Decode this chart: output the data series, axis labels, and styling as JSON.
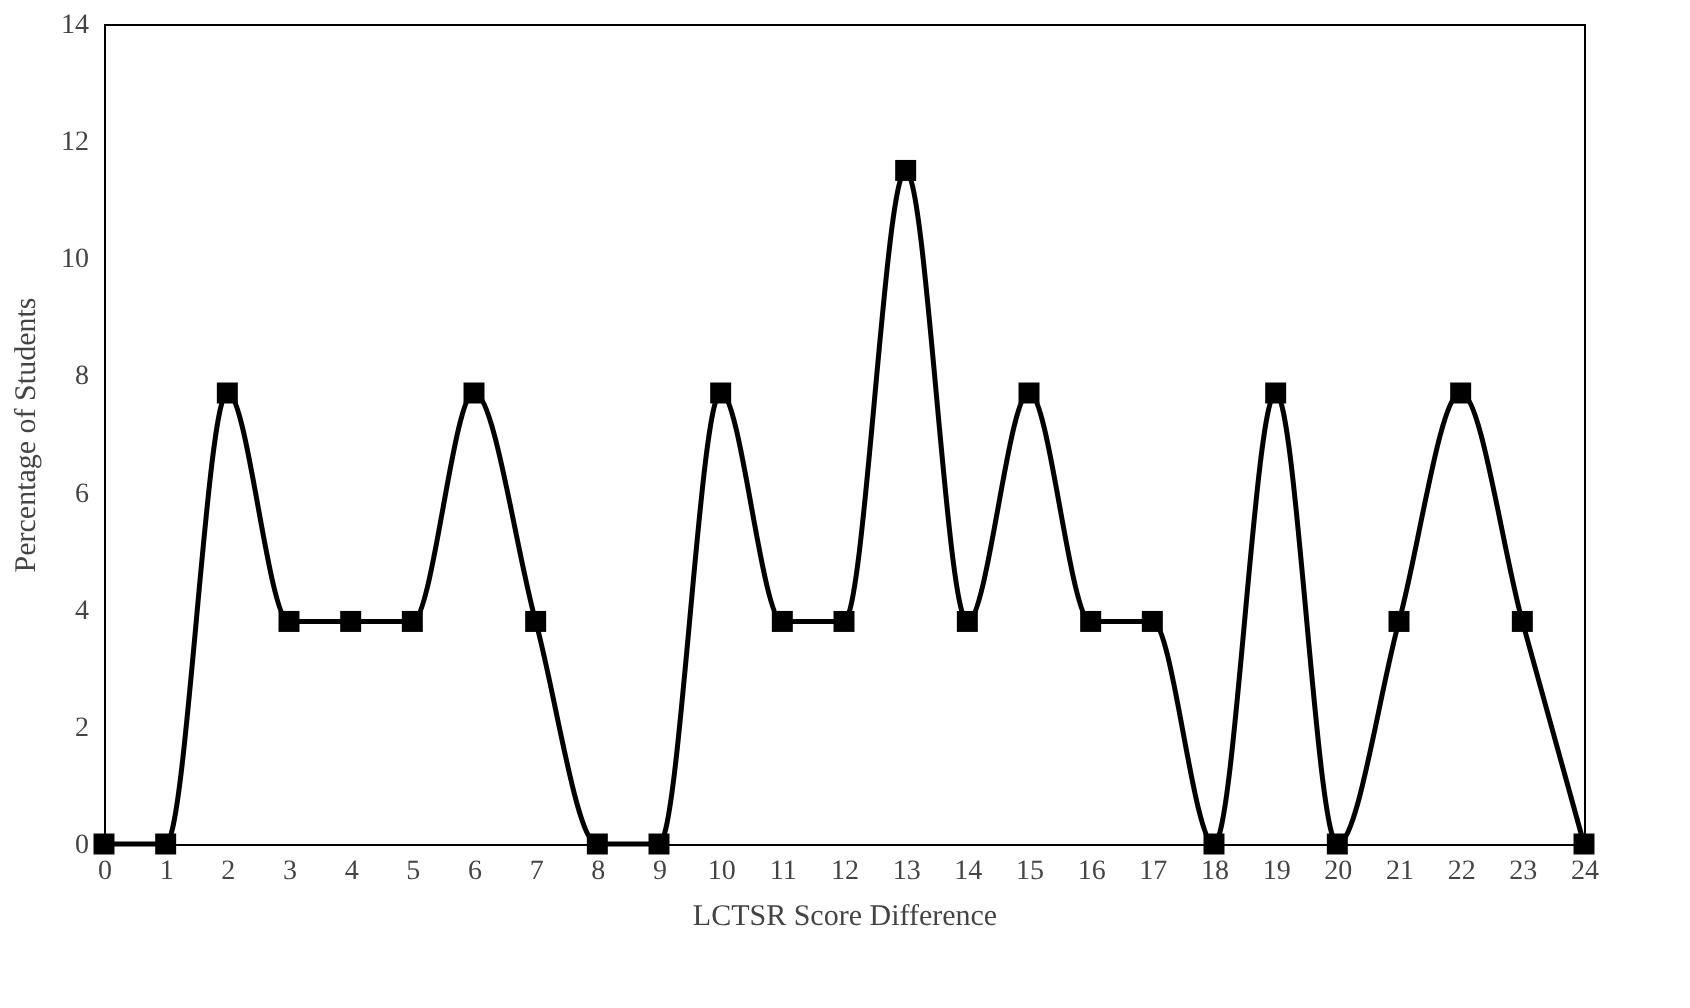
{
  "chart_data": {
    "type": "line",
    "xlabel": "LCTSR Score Difference",
    "ylabel": "Percentage of Students",
    "x": [
      0,
      1,
      2,
      3,
      4,
      5,
      6,
      7,
      8,
      9,
      10,
      11,
      12,
      13,
      14,
      15,
      16,
      17,
      18,
      19,
      20,
      21,
      22,
      23,
      24
    ],
    "series": [
      {
        "color": "#000000",
        "values": [
          0,
          0,
          7.7,
          3.8,
          3.8,
          3.8,
          7.7,
          3.8,
          0,
          0,
          7.7,
          3.8,
          3.8,
          11.5,
          3.8,
          7.7,
          3.8,
          3.8,
          0,
          7.7,
          0,
          3.8,
          7.7,
          3.8,
          0
        ]
      }
    ],
    "xlim": [
      0,
      24
    ],
    "xticks": [
      0,
      1,
      2,
      3,
      4,
      5,
      6,
      7,
      8,
      9,
      10,
      11,
      12,
      13,
      14,
      15,
      16,
      17,
      18,
      19,
      20,
      21,
      22,
      23,
      24
    ],
    "ylim": [
      0,
      14
    ],
    "yticks": [
      0,
      2,
      4,
      6,
      8,
      10,
      12,
      14
    ],
    "grid": false,
    "marker": "square",
    "line_style": "solid"
  }
}
